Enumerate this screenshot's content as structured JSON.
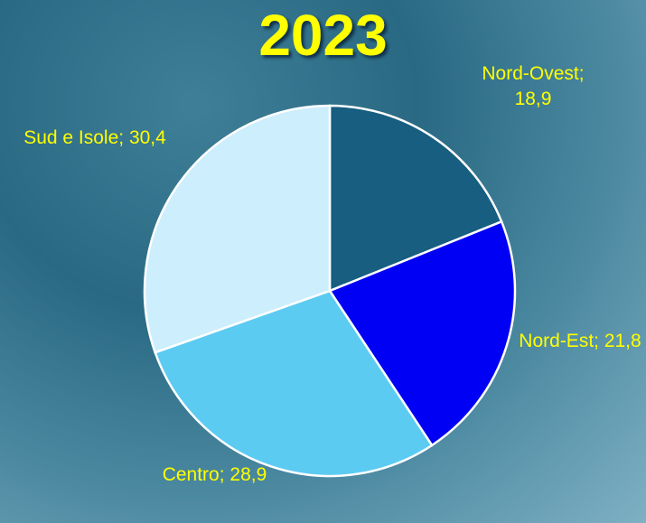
{
  "chart_data": {
    "type": "pie",
    "title": "2023",
    "categories": [
      "Nord-Ovest",
      "Nord-Est",
      "Centro",
      "Sud e Isole"
    ],
    "values": [
      18.9,
      21.8,
      28.9,
      30.4
    ],
    "value_labels": [
      "18,9",
      "21,8",
      "28,9",
      "30,4"
    ],
    "label_separator": "; ",
    "colors": [
      "#175e80",
      "#0000f5",
      "#5ccbf2",
      "#cdeefc"
    ]
  }
}
